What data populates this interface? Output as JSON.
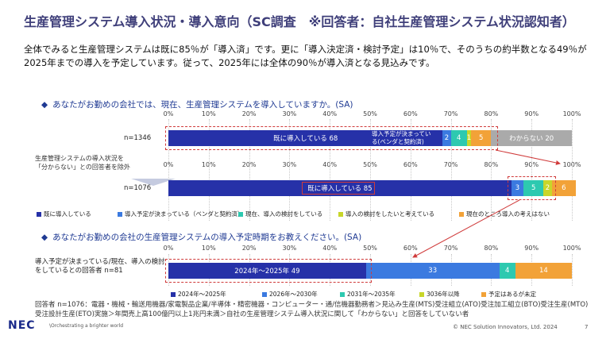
{
  "title": "生産管理システム導入状況・導入意向（SC調査　※回答者：自社生産管理システム状況認知者）",
  "description": "全体でみると生産管理システムは既に85％が「導入済」です。更に「導入決定済・検討予定」は10％で、そのうちの約半数となる49％が2025年までの導入を予定しています。従って、2025年には全体の90％が導入済となる見込みです。",
  "question1": "あなたがお勤めの会社では、現在、生産管理システムを導入していますか。(SA)",
  "question2": "あなたがお勤めの会社の生産管理システムの導入予定時期をお教えください。(SA)",
  "side_note": "生産管理システムの導入状況を「分からない」との回答者を除外",
  "note": "回答者 n=1076：電器・機械・輸送用機器/家電製品企業/半導体・精密機器・コンピューター・通/信機器勤務者＞見込み生産(MTS)受注組立(ATO)受注加工組立(BTO)受注生産(MTO)受注設計生産(ETO)実施＞年間売上高100億円以上1兆円未満＞自社の生産管理システム導入状況に関して「わからない」と回答をしていない者",
  "footer": {
    "logo": "NEC",
    "tagline": "\\Orchestrating a brighter world",
    "copyright": "© NEC Solution Innovators, Ltd. 2024",
    "page": "7"
  },
  "colors": {
    "navy": "#2631a8",
    "blue": "#3b7ae0",
    "teal": "#2dc9b0",
    "yellow": "#c8d62a",
    "orange": "#f2a238",
    "gray": "#aaaaaa",
    "red": "#d03b3b"
  },
  "chart_data": [
    {
      "type": "bar",
      "stacked": true,
      "orientation": "horizontal",
      "xlim": [
        0,
        100
      ],
      "tick_labels": [
        "0%",
        "10%",
        "20%",
        "30%",
        "40%",
        "50%",
        "60%",
        "70%",
        "80%",
        "90%",
        "100%"
      ],
      "rows": [
        {
          "label": "n=1346",
          "segments": [
            {
              "name": "既に導入している",
              "value": 68,
              "label": "既に導入している 68",
              "color": "#2631a8"
            },
            {
              "name": "導入予定が決まっている（ベンダと契約済）",
              "value": 2,
              "label": "2",
              "color": "#3b7ae0",
              "annotation": "導入予定が決まっている(ベンダと契約済)"
            },
            {
              "name": "現在、導入の検討をしている",
              "value": 4,
              "label": "4",
              "color": "#2dc9b0"
            },
            {
              "name": "導入の検討をしたいと考えている",
              "value": 1,
              "label": "1",
              "color": "#c8d62a"
            },
            {
              "name": "現在のところ導入の考えはない",
              "value": 5,
              "label": "5",
              "color": "#f2a238"
            },
            {
              "name": "わからない",
              "value": 20,
              "label": "わからない 20",
              "color": "#aaaaaa"
            }
          ]
        },
        {
          "label": "n=1076",
          "segments": [
            {
              "name": "既に導入している",
              "value": 85,
              "label": "既に導入している 85",
              "color": "#2631a8"
            },
            {
              "name": "導入予定が決まっている（ベンダと契約済）",
              "value": 3,
              "label": "3",
              "color": "#3b7ae0"
            },
            {
              "name": "現在、導入の検討をしている",
              "value": 5,
              "label": "5",
              "color": "#2dc9b0"
            },
            {
              "name": "導入の検討をしたいと考えている",
              "value": 2,
              "label": "2",
              "color": "#c8d62a"
            },
            {
              "name": "現在のところ導入の考えはない",
              "value": 6,
              "label": "6",
              "color": "#f2a238"
            }
          ]
        }
      ],
      "legend": [
        "既に導入している",
        "導入予定が決まっている（ベンダと契約済）",
        "現在、導入の検討をしている",
        "導入の検討をしたいと考えている",
        "現在のところ導入の考えはない"
      ]
    },
    {
      "type": "bar",
      "stacked": true,
      "orientation": "horizontal",
      "xlim": [
        0,
        100
      ],
      "tick_labels": [
        "0%",
        "10%",
        "20%",
        "30%",
        "40%",
        "50%",
        "60%",
        "70%",
        "80%",
        "90%",
        "100%"
      ],
      "rows": [
        {
          "label": "導入予定が決まっている/現在、導入の検討をしているとの回答者 n=81",
          "segments": [
            {
              "name": "2024年～2025年",
              "value": 49,
              "label": "2024年～2025年 49",
              "color": "#2631a8"
            },
            {
              "name": "2026年～2030年",
              "value": 33,
              "label": "33",
              "color": "#3b7ae0"
            },
            {
              "name": "2031年～2035年",
              "value": 4,
              "label": "4",
              "color": "#2dc9b0"
            },
            {
              "name": "3036年以降",
              "value": 0,
              "label": "0",
              "color": "#c8d62a"
            },
            {
              "name": "予定はあるが未定",
              "value": 14,
              "label": "14",
              "color": "#f2a238"
            }
          ]
        }
      ],
      "legend": [
        "2024年～2025年",
        "2026年～2030年",
        "2031年～2035年",
        "3036年以降",
        "予定はあるが未定"
      ]
    }
  ]
}
